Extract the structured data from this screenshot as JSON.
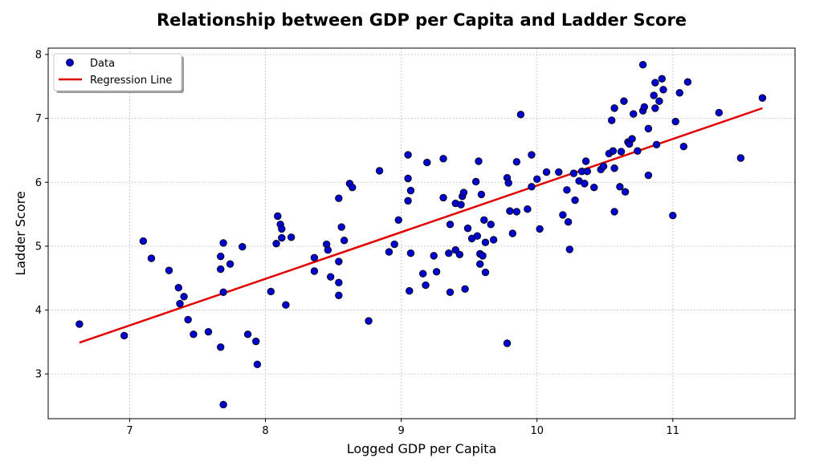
{
  "chart_data": {
    "type": "scatter",
    "title": "Relationship between GDP per Capita and Ladder Score",
    "xlabel": "Logged GDP per Capita",
    "ylabel": "Ladder Score",
    "xlim": [
      6.4,
      11.9
    ],
    "ylim": [
      2.3,
      8.1
    ],
    "xticks": [
      7,
      8,
      9,
      10,
      11
    ],
    "yticks": [
      3,
      4,
      5,
      6,
      7,
      8
    ],
    "grid": true,
    "legend_position": "top-left",
    "series": [
      {
        "name": "Data",
        "kind": "scatter",
        "color": "#0000cc",
        "edge_color": "#000000",
        "points": [
          [
            6.63,
            3.78
          ],
          [
            6.96,
            3.6
          ],
          [
            7.1,
            5.08
          ],
          [
            7.16,
            4.81
          ],
          [
            7.29,
            4.62
          ],
          [
            7.36,
            4.35
          ],
          [
            7.37,
            4.1
          ],
          [
            7.4,
            4.21
          ],
          [
            7.43,
            3.85
          ],
          [
            7.47,
            3.62
          ],
          [
            7.58,
            3.66
          ],
          [
            7.67,
            4.84
          ],
          [
            7.67,
            4.64
          ],
          [
            7.67,
            3.42
          ],
          [
            7.69,
            5.05
          ],
          [
            7.69,
            4.28
          ],
          [
            7.69,
            2.52
          ],
          [
            7.74,
            4.72
          ],
          [
            7.83,
            4.99
          ],
          [
            7.87,
            3.62
          ],
          [
            7.93,
            3.51
          ],
          [
            7.94,
            3.15
          ],
          [
            8.04,
            4.29
          ],
          [
            8.08,
            5.04
          ],
          [
            8.09,
            5.47
          ],
          [
            8.11,
            5.34
          ],
          [
            8.12,
            5.27
          ],
          [
            8.12,
            5.13
          ],
          [
            8.15,
            4.08
          ],
          [
            8.19,
            5.14
          ],
          [
            8.36,
            4.82
          ],
          [
            8.36,
            4.61
          ],
          [
            8.45,
            5.03
          ],
          [
            8.46,
            4.94
          ],
          [
            8.48,
            4.52
          ],
          [
            8.54,
            5.75
          ],
          [
            8.54,
            4.76
          ],
          [
            8.54,
            4.43
          ],
          [
            8.54,
            4.23
          ],
          [
            8.56,
            5.3
          ],
          [
            8.58,
            5.09
          ],
          [
            8.62,
            5.98
          ],
          [
            8.64,
            5.92
          ],
          [
            8.76,
            3.83
          ],
          [
            8.84,
            6.18
          ],
          [
            8.91,
            4.91
          ],
          [
            8.95,
            5.03
          ],
          [
            8.98,
            5.41
          ],
          [
            9.05,
            6.43
          ],
          [
            9.05,
            6.06
          ],
          [
            9.05,
            5.71
          ],
          [
            9.06,
            4.3
          ],
          [
            9.07,
            5.87
          ],
          [
            9.07,
            4.89
          ],
          [
            9.16,
            4.57
          ],
          [
            9.18,
            4.39
          ],
          [
            9.19,
            6.31
          ],
          [
            9.24,
            4.85
          ],
          [
            9.26,
            4.6
          ],
          [
            9.31,
            6.37
          ],
          [
            9.31,
            5.76
          ],
          [
            9.35,
            4.89
          ],
          [
            9.36,
            5.34
          ],
          [
            9.36,
            4.28
          ],
          [
            9.4,
            5.67
          ],
          [
            9.4,
            4.94
          ],
          [
            9.43,
            4.87
          ],
          [
            9.44,
            5.65
          ],
          [
            9.45,
            5.78
          ],
          [
            9.46,
            5.84
          ],
          [
            9.47,
            4.33
          ],
          [
            9.49,
            5.28
          ],
          [
            9.52,
            5.12
          ],
          [
            9.55,
            6.01
          ],
          [
            9.56,
            5.16
          ],
          [
            9.57,
            6.33
          ],
          [
            9.58,
            4.88
          ],
          [
            9.58,
            4.72
          ],
          [
            9.59,
            5.81
          ],
          [
            9.6,
            4.85
          ],
          [
            9.61,
            5.41
          ],
          [
            9.62,
            5.06
          ],
          [
            9.62,
            4.59
          ],
          [
            9.66,
            5.34
          ],
          [
            9.68,
            5.1
          ],
          [
            9.78,
            6.07
          ],
          [
            9.78,
            3.48
          ],
          [
            9.79,
            5.99
          ],
          [
            9.8,
            5.55
          ],
          [
            9.82,
            5.2
          ],
          [
            9.85,
            6.32
          ],
          [
            9.85,
            5.54
          ],
          [
            9.88,
            7.06
          ],
          [
            9.93,
            5.58
          ],
          [
            9.96,
            6.43
          ],
          [
            9.96,
            5.93
          ],
          [
            10.0,
            6.05
          ],
          [
            10.02,
            5.27
          ],
          [
            10.07,
            6.16
          ],
          [
            10.16,
            6.16
          ],
          [
            10.19,
            5.49
          ],
          [
            10.22,
            5.88
          ],
          [
            10.23,
            5.38
          ],
          [
            10.24,
            4.95
          ],
          [
            10.27,
            6.14
          ],
          [
            10.28,
            5.72
          ],
          [
            10.31,
            6.02
          ],
          [
            10.33,
            6.17
          ],
          [
            10.35,
            5.98
          ],
          [
            10.36,
            6.33
          ],
          [
            10.37,
            6.17
          ],
          [
            10.42,
            5.92
          ],
          [
            10.47,
            6.2
          ],
          [
            10.49,
            6.25
          ],
          [
            10.53,
            6.45
          ],
          [
            10.55,
            6.97
          ],
          [
            10.56,
            6.49
          ],
          [
            10.57,
            7.16
          ],
          [
            10.57,
            6.22
          ],
          [
            10.57,
            5.54
          ],
          [
            10.61,
            5.93
          ],
          [
            10.62,
            6.48
          ],
          [
            10.64,
            7.27
          ],
          [
            10.65,
            5.85
          ],
          [
            10.67,
            6.63
          ],
          [
            10.68,
            6.6
          ],
          [
            10.7,
            6.68
          ],
          [
            10.71,
            7.07
          ],
          [
            10.74,
            6.49
          ],
          [
            10.78,
            7.84
          ],
          [
            10.78,
            7.12
          ],
          [
            10.79,
            7.18
          ],
          [
            10.82,
            6.84
          ],
          [
            10.82,
            6.11
          ],
          [
            10.86,
            7.36
          ],
          [
            10.87,
            7.56
          ],
          [
            10.87,
            7.16
          ],
          [
            10.88,
            6.59
          ],
          [
            10.9,
            7.27
          ],
          [
            10.92,
            7.62
          ],
          [
            10.93,
            7.45
          ],
          [
            11.0,
            5.48
          ],
          [
            11.02,
            6.95
          ],
          [
            11.05,
            7.4
          ],
          [
            11.08,
            6.56
          ],
          [
            11.11,
            7.57
          ],
          [
            11.34,
            7.09
          ],
          [
            11.5,
            6.38
          ],
          [
            11.66,
            7.32
          ]
        ]
      },
      {
        "name": "Regression Line",
        "kind": "line",
        "color": "#e00000",
        "points": [
          [
            6.63,
            3.49
          ],
          [
            11.66,
            7.16
          ]
        ]
      }
    ]
  }
}
